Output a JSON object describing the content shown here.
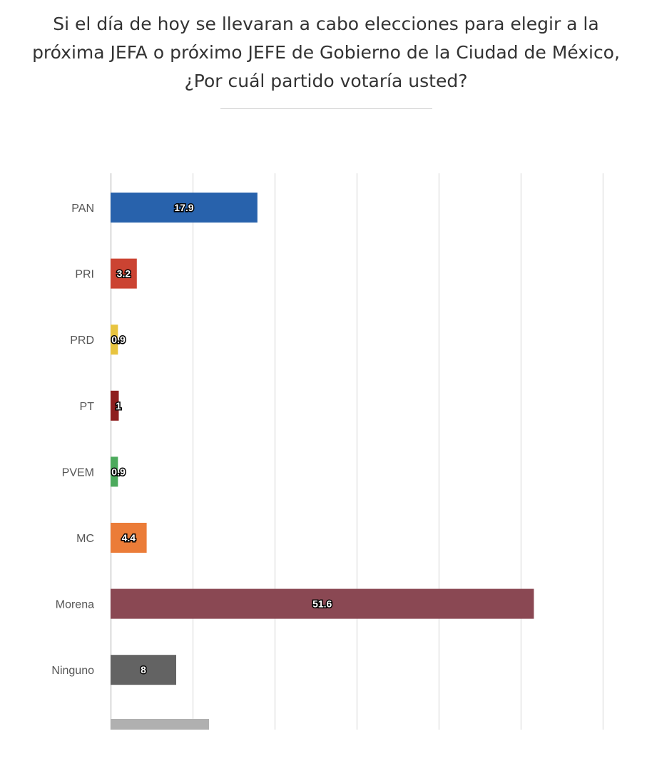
{
  "title": "Si el día de hoy se llevaran a cabo elecciones para elegir a la próxima JEFA o próximo JEFE de Gobierno de la Ciudad de México, ¿Por cuál partido votaría usted?",
  "chart_data": {
    "type": "bar",
    "orientation": "horizontal",
    "categories": [
      "PAN",
      "PRI",
      "PRD",
      "PT",
      "PVEM",
      "MC",
      "Morena",
      "Ninguno",
      ""
    ],
    "values": [
      17.9,
      3.2,
      0.9,
      1,
      0.9,
      4.4,
      51.6,
      8,
      12
    ],
    "data_labels": [
      "17.9",
      "3.2",
      "0.9",
      "1",
      "0.9",
      "4.4",
      "51.6",
      "8",
      ""
    ],
    "colors": [
      "#2862ac",
      "#cb4332",
      "#e8c43f",
      "#8e1e1e",
      "#4caa5c",
      "#eb7c38",
      "#8a4853",
      "#636363",
      "#b0b0b0"
    ],
    "xlim": [
      0,
      60
    ],
    "grid": true,
    "legend": "none"
  }
}
